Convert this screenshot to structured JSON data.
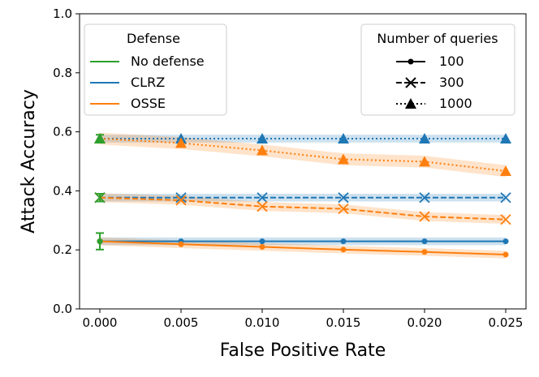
{
  "chart_data": {
    "type": "line",
    "xlabel": "False Positive Rate",
    "ylabel": "Attack Accuracy",
    "xlim": [
      -0.00125,
      0.02625
    ],
    "ylim": [
      0.0,
      1.0
    ],
    "x": [
      0.0,
      0.005,
      0.01,
      0.015,
      0.02,
      0.025
    ],
    "x_tick_labels": [
      "0.000",
      "0.005",
      "0.010",
      "0.015",
      "0.020",
      "0.025"
    ],
    "y_ticks": [
      0.0,
      0.2,
      0.4,
      0.6,
      0.8,
      1.0
    ],
    "y_tick_labels": [
      "0.0",
      "0.2",
      "0.4",
      "0.6",
      "0.8",
      "1.0"
    ],
    "colors": {
      "no_defense": "#2ca02c",
      "clrz": "#1f77b4",
      "osse": "#ff7f0e"
    },
    "legend_defense": {
      "title": "Defense",
      "entries": [
        "No defense",
        "CLRZ",
        "OSSE"
      ],
      "placement": "top-left"
    },
    "legend_queries": {
      "title": "Number of queries",
      "entries": [
        "100",
        "300",
        "1000"
      ],
      "placement": "top-right"
    },
    "no_defense_points": [
      {
        "queries": "100",
        "x": 0.0,
        "y": 0.229,
        "err": 0.028
      },
      {
        "queries": "300",
        "x": 0.0,
        "y": 0.377,
        "err": 0.013
      },
      {
        "queries": "1000",
        "x": 0.0,
        "y": 0.577,
        "err": 0.013
      }
    ],
    "series": [
      {
        "name": "CLRZ",
        "queries": "100",
        "style": "solid",
        "marker": "dot",
        "values": [
          0.229,
          0.229,
          0.229,
          0.229,
          0.229,
          0.229
        ],
        "band": 0.013
      },
      {
        "name": "CLRZ",
        "queries": "300",
        "style": "dashed",
        "marker": "x",
        "values": [
          0.377,
          0.377,
          0.377,
          0.377,
          0.377,
          0.377
        ],
        "band": 0.013
      },
      {
        "name": "CLRZ",
        "queries": "1000",
        "style": "dotted",
        "marker": "triangle",
        "values": [
          0.577,
          0.577,
          0.577,
          0.577,
          0.577,
          0.577
        ],
        "band": 0.013
      },
      {
        "name": "OSSE",
        "queries": "100",
        "style": "solid",
        "marker": "dot",
        "values": [
          0.229,
          0.219,
          0.21,
          0.201,
          0.193,
          0.184
        ],
        "band": 0.013
      },
      {
        "name": "OSSE",
        "queries": "300",
        "style": "dashed",
        "marker": "x",
        "values": [
          0.377,
          0.368,
          0.347,
          0.339,
          0.313,
          0.303
        ],
        "band": 0.015
      },
      {
        "name": "OSSE",
        "queries": "1000",
        "style": "dotted",
        "marker": "triangle",
        "values": [
          0.577,
          0.562,
          0.537,
          0.507,
          0.499,
          0.467
        ],
        "band": 0.02
      }
    ]
  }
}
